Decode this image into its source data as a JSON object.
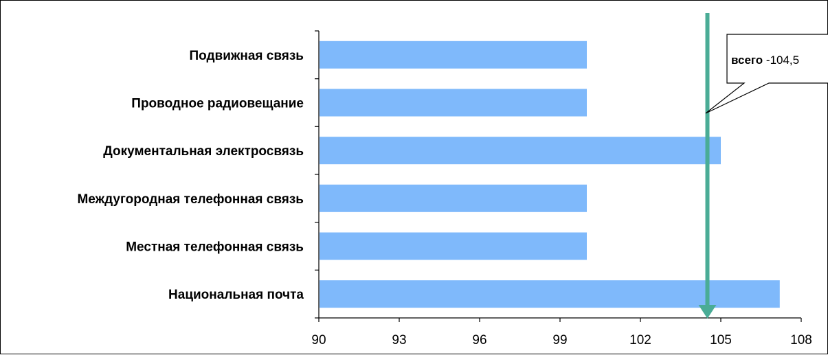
{
  "chart_data": {
    "type": "bar",
    "orientation": "horizontal",
    "categories": [
      "Подвижная связь",
      "Проводное радиовещание",
      "Документальная электросвязь",
      "Междугородная телефонная связь",
      "Местная телефонная связь",
      "Национальная почта"
    ],
    "values": [
      100,
      100,
      105,
      100,
      100,
      107.2
    ],
    "xlim": [
      90,
      108
    ],
    "xticks": [
      "90",
      "93",
      "96",
      "99",
      "102",
      "105",
      "108"
    ],
    "tick_values": [
      90,
      93,
      96,
      99,
      102,
      105,
      108
    ],
    "bar_color": "#7fb9fb",
    "grid": false,
    "reference_line": {
      "value": 104.5,
      "color": "#4aac96",
      "callout_bold": "всего",
      "callout_text": " -104,5"
    }
  }
}
